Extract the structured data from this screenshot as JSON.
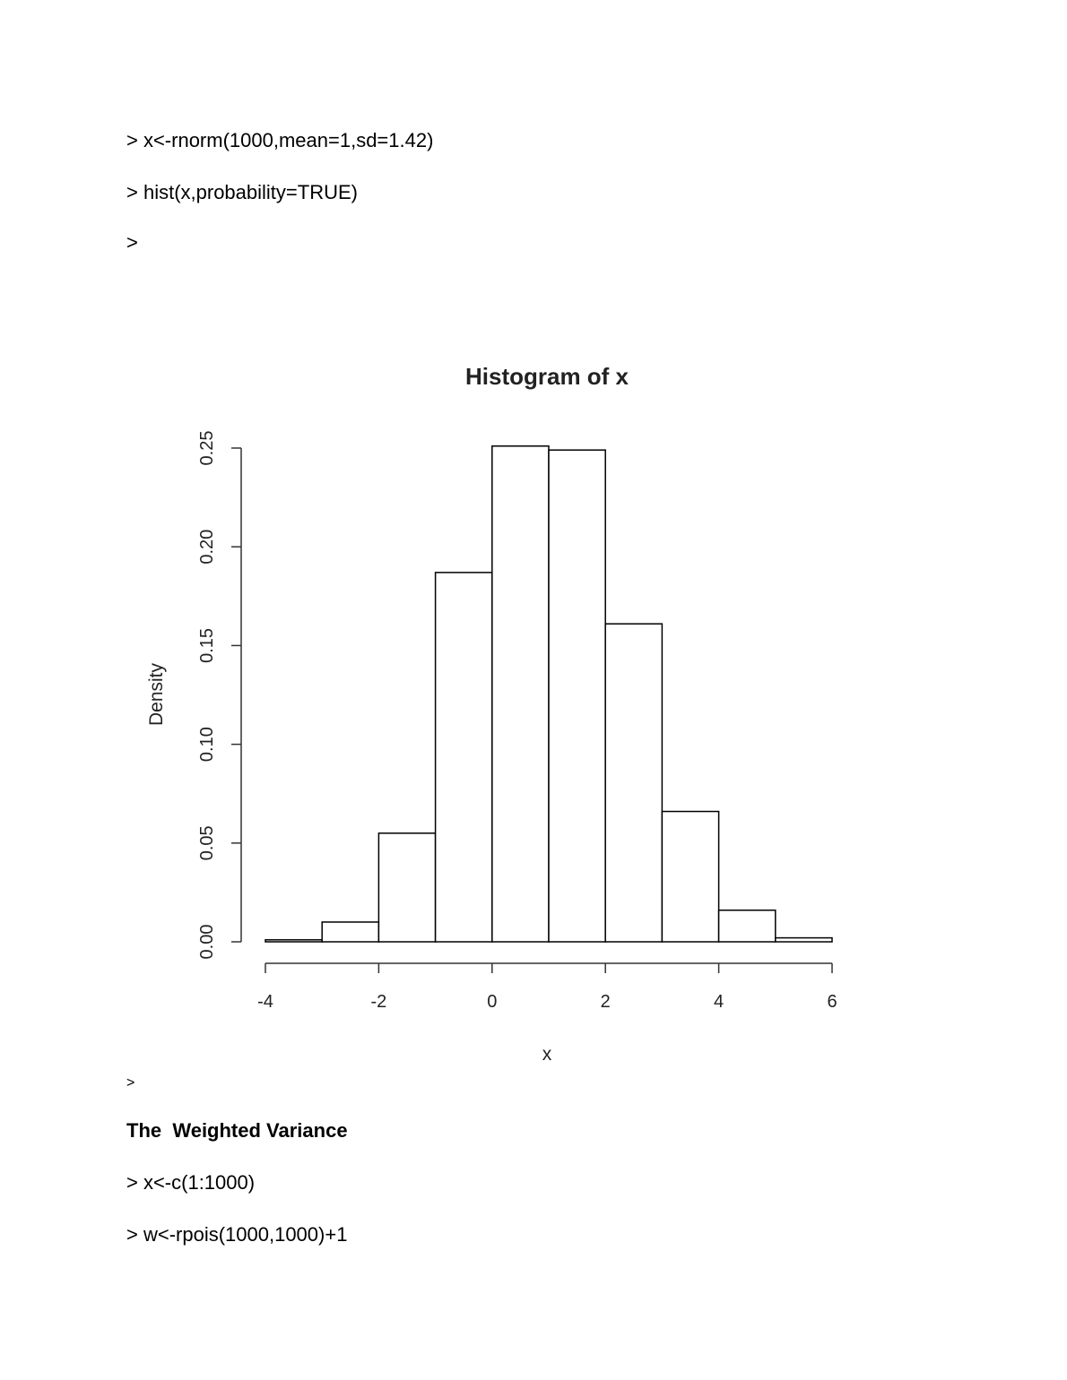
{
  "document": {
    "lines_top": [
      "> x<-rnorm(1000,mean=1,sd=1.42)",
      "> hist(x,probability=TRUE)",
      ">"
    ],
    "prompt_after_chart": ">",
    "heading": "The  Weighted Variance",
    "lines_bottom": [
      "> x<-c(1:1000)",
      "> w<-rpois(1000,1000)+1"
    ]
  },
  "chart_data": {
    "type": "bar",
    "title": "Histogram of x",
    "xlabel": "x",
    "ylabel": "Density",
    "bin_edges": [
      -4,
      -3,
      -2,
      -1,
      0,
      1,
      2,
      3,
      4,
      5,
      6
    ],
    "values": [
      0.001,
      0.01,
      0.055,
      0.187,
      0.251,
      0.249,
      0.161,
      0.066,
      0.016,
      0.002
    ],
    "xlim": [
      -4,
      6
    ],
    "ylim": [
      0,
      0.25
    ],
    "xticks": [
      "-4",
      "-2",
      "0",
      "2",
      "4",
      "6"
    ],
    "yticks": [
      "0.00",
      "0.05",
      "0.10",
      "0.15",
      "0.20",
      "0.25"
    ],
    "grid": false,
    "bar_fill": "#ffffff",
    "bar_stroke": "#000000"
  }
}
